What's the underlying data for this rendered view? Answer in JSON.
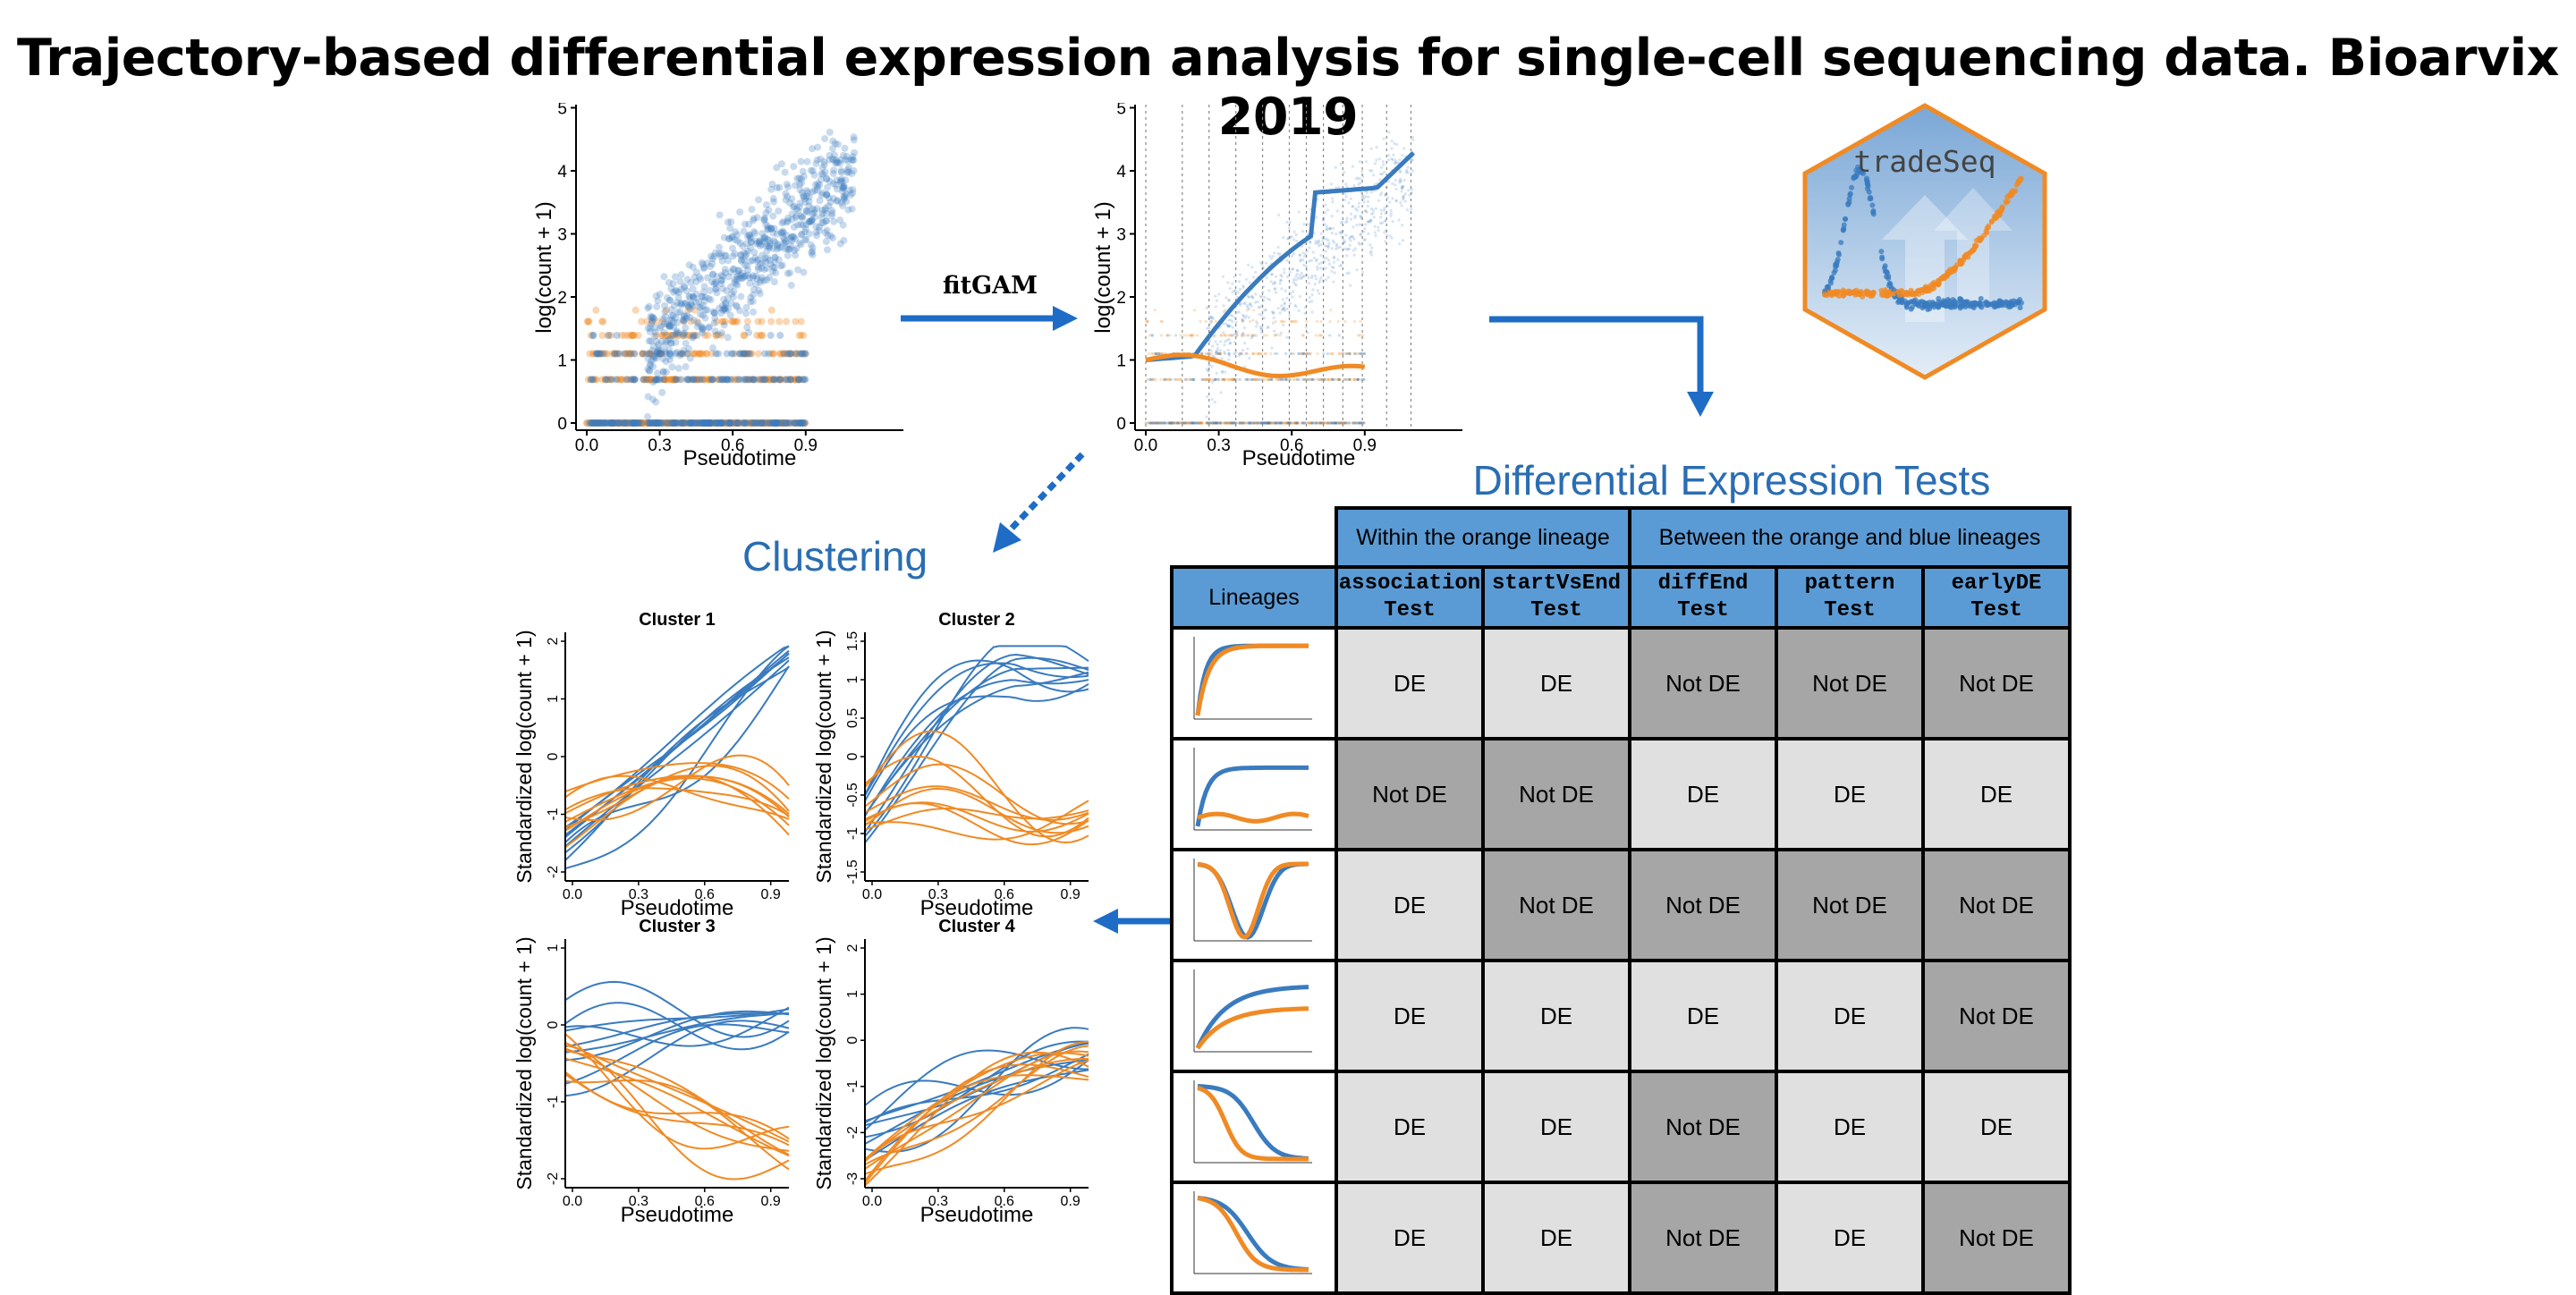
{
  "title": "Trajectory-based differential expression analysis for single-cell sequencing data. Bioarvix 2019",
  "colors": {
    "blue": "#3a7bbf",
    "orange": "#f08a24",
    "arrow": "#1e6cc6",
    "header_blue": "#5b9bd5",
    "de_cell": "#e0e0e0",
    "notde_cell": "#a6a6a6"
  },
  "panel_raw": {
    "ylabel": "log(count + 1)",
    "xlabel": "Pseudotime",
    "yticks": [
      "0",
      "1",
      "2",
      "3",
      "4",
      "5"
    ],
    "xticks": [
      "0.0",
      "0.3",
      "0.6",
      "0.9"
    ]
  },
  "panel_fit": {
    "ylabel": "log(count + 1)",
    "xlabel": "Pseudotime",
    "yticks": [
      "0",
      "1",
      "2",
      "3",
      "4",
      "5"
    ],
    "xticks": [
      "0.0",
      "0.3",
      "0.6",
      "0.9"
    ]
  },
  "fit_arrow_label": "fitGAM",
  "logo_text": "tradeSeq",
  "tests_title": "Differential Expression Tests",
  "clustering_title": "Clustering",
  "clusters": [
    {
      "title": "Cluster 1",
      "ylabel": "Standardized log(count + 1)",
      "xlabel": "Pseudotime",
      "yticks": [
        "-2",
        "-1",
        "0",
        "1",
        "2"
      ],
      "xticks": [
        "0.0",
        "0.3",
        "0.6",
        "0.9"
      ]
    },
    {
      "title": "Cluster 2",
      "ylabel": "Standardized log(count + 1)",
      "xlabel": "Pseudotime",
      "yticks": [
        "-1.5",
        "-1",
        "-0.5",
        "0",
        "0.5",
        "1",
        "1.5"
      ],
      "xticks": [
        "0.0",
        "0.3",
        "0.6",
        "0.9"
      ]
    },
    {
      "title": "Cluster 3",
      "ylabel": "Standardized log(count + 1)",
      "xlabel": "Pseudotime",
      "yticks": [
        "-2",
        "-1",
        "0",
        "1"
      ],
      "xticks": [
        "0.0",
        "0.3",
        "0.6",
        "0.9"
      ]
    },
    {
      "title": "Cluster 4",
      "ylabel": "Standardized log(count + 1)",
      "xlabel": "Pseudotime",
      "yticks": [
        "-3",
        "-2",
        "-1",
        "0",
        "1",
        "2"
      ],
      "xticks": [
        "0.0",
        "0.3",
        "0.6",
        "0.9"
      ]
    }
  ],
  "table": {
    "group_within": "Within the orange lineage",
    "group_between": "Between the orange and blue lineages",
    "lineages_header": "Lineages",
    "tests": [
      {
        "name": "association",
        "suffix": "Test"
      },
      {
        "name": "startVsEnd",
        "suffix": "Test"
      },
      {
        "name": "diffEnd",
        "suffix": "Test"
      },
      {
        "name": "pattern",
        "suffix": "Test"
      },
      {
        "name": "earlyDE",
        "suffix": "Test"
      }
    ],
    "rows": [
      [
        "DE",
        "DE",
        "Not DE",
        "Not DE",
        "Not DE"
      ],
      [
        "Not DE",
        "Not DE",
        "DE",
        "DE",
        "DE"
      ],
      [
        "DE",
        "Not DE",
        "Not DE",
        "Not DE",
        "Not DE"
      ],
      [
        "DE",
        "DE",
        "DE",
        "DE",
        "Not DE"
      ],
      [
        "DE",
        "DE",
        "Not DE",
        "DE",
        "DE"
      ],
      [
        "DE",
        "DE",
        "Not DE",
        "DE",
        "Not DE"
      ]
    ]
  }
}
